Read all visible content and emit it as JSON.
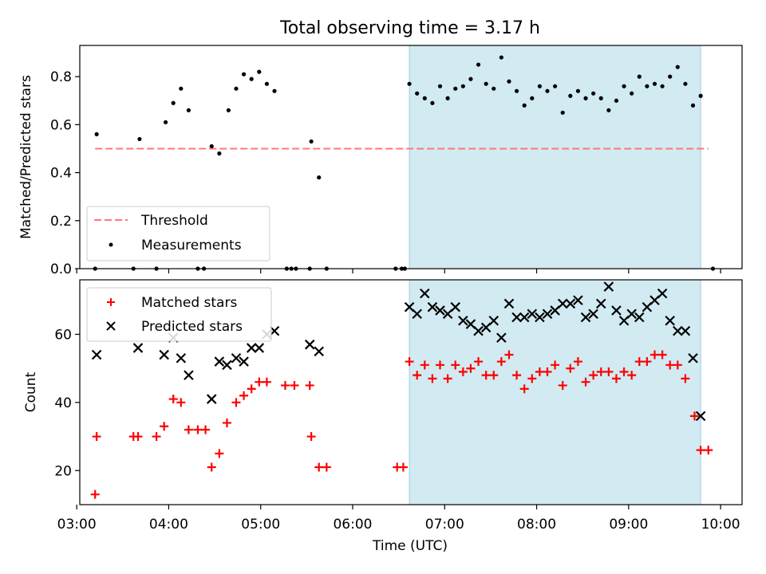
{
  "chart_data": [
    {
      "type": "scatter",
      "title": "Total observing time = 3.17 h",
      "xlabel": "",
      "ylabel": "Matched/Predicted stars",
      "x_unit": "time (UTC, HH:MM)",
      "xlim": [
        "03:02",
        "10:14"
      ],
      "ylim": [
        0,
        0.93
      ],
      "y_ticks": [
        "0.0",
        "0.2",
        "0.4",
        "0.6",
        "0.8"
      ],
      "highlight_span": [
        "06:37",
        "09:47"
      ],
      "highlight_color": "#add8e6",
      "legend_loc": "lower-left",
      "legend": [
        {
          "label": "Threshold",
          "style": "dashed-line",
          "color": "#ff7777"
        },
        {
          "label": "Measurements",
          "style": "dot",
          "color": "#000000"
        }
      ],
      "threshold": {
        "y": 0.5,
        "x_range": [
          "03:12",
          "09:52"
        ],
        "color": "#ff7777"
      },
      "series": [
        {
          "name": "Measurements",
          "color": "#000000",
          "points": [
            [
              "03:12",
              0.0
            ],
            [
              "03:13",
              0.56
            ],
            [
              "03:37",
              0.0
            ],
            [
              "03:41",
              0.54
            ],
            [
              "03:52",
              0.0
            ],
            [
              "03:58",
              0.61
            ],
            [
              "04:03",
              0.69
            ],
            [
              "04:08",
              0.75
            ],
            [
              "04:13",
              0.66
            ],
            [
              "04:19",
              0.0
            ],
            [
              "04:23",
              0.0
            ],
            [
              "04:28",
              0.51
            ],
            [
              "04:33",
              0.48
            ],
            [
              "04:39",
              0.66
            ],
            [
              "04:44",
              0.75
            ],
            [
              "04:49",
              0.81
            ],
            [
              "04:54",
              0.79
            ],
            [
              "04:59",
              0.82
            ],
            [
              "05:04",
              0.77
            ],
            [
              "05:09",
              0.74
            ],
            [
              "05:17",
              0.0
            ],
            [
              "05:20",
              0.0
            ],
            [
              "05:23",
              0.0
            ],
            [
              "05:32",
              0.0
            ],
            [
              "05:33",
              0.53
            ],
            [
              "05:38",
              0.38
            ],
            [
              "05:43",
              0.0
            ],
            [
              "06:28",
              0.0
            ],
            [
              "06:32",
              0.0
            ],
            [
              "06:34",
              0.0
            ],
            [
              "06:37",
              0.77
            ],
            [
              "06:42",
              0.73
            ],
            [
              "06:47",
              0.71
            ],
            [
              "06:52",
              0.69
            ],
            [
              "06:57",
              0.76
            ],
            [
              "07:02",
              0.71
            ],
            [
              "07:07",
              0.75
            ],
            [
              "07:12",
              0.76
            ],
            [
              "07:17",
              0.79
            ],
            [
              "07:22",
              0.85
            ],
            [
              "07:27",
              0.77
            ],
            [
              "07:32",
              0.75
            ],
            [
              "07:37",
              0.88
            ],
            [
              "07:42",
              0.78
            ],
            [
              "07:47",
              0.74
            ],
            [
              "07:52",
              0.68
            ],
            [
              "07:57",
              0.71
            ],
            [
              "08:02",
              0.76
            ],
            [
              "08:07",
              0.74
            ],
            [
              "08:12",
              0.76
            ],
            [
              "08:17",
              0.65
            ],
            [
              "08:22",
              0.72
            ],
            [
              "08:27",
              0.74
            ],
            [
              "08:32",
              0.71
            ],
            [
              "08:37",
              0.73
            ],
            [
              "08:42",
              0.71
            ],
            [
              "08:47",
              0.66
            ],
            [
              "08:52",
              0.7
            ],
            [
              "08:57",
              0.76
            ],
            [
              "09:02",
              0.73
            ],
            [
              "09:07",
              0.8
            ],
            [
              "09:12",
              0.76
            ],
            [
              "09:17",
              0.77
            ],
            [
              "09:22",
              0.76
            ],
            [
              "09:27",
              0.8
            ],
            [
              "09:32",
              0.84
            ],
            [
              "09:37",
              0.77
            ],
            [
              "09:42",
              0.68
            ],
            [
              "09:47",
              0.72
            ],
            [
              "09:55",
              0.0
            ]
          ]
        }
      ]
    },
    {
      "type": "scatter",
      "title": "",
      "xlabel": "Time (UTC)",
      "ylabel": "Count",
      "x_unit": "time (UTC, HH:MM)",
      "xlim": [
        "03:02",
        "10:14"
      ],
      "ylim": [
        10,
        76
      ],
      "y_ticks": [
        "20",
        "40",
        "60"
      ],
      "x_ticks": [
        "03:00",
        "04:00",
        "05:00",
        "06:00",
        "07:00",
        "08:00",
        "09:00",
        "10:00"
      ],
      "highlight_span": [
        "06:37",
        "09:47"
      ],
      "highlight_color": "#add8e6",
      "legend_loc": "upper-left",
      "legend": [
        {
          "label": "Matched stars",
          "style": "plus",
          "color": "#ff0000"
        },
        {
          "label": "Predicted stars",
          "style": "cross",
          "color": "#000000"
        }
      ],
      "series": [
        {
          "name": "Matched stars",
          "marker": "plus",
          "color": "#ff0000",
          "points": [
            [
              "03:12",
              13
            ],
            [
              "03:13",
              30
            ],
            [
              "03:37",
              30
            ],
            [
              "03:40",
              30
            ],
            [
              "03:52",
              30
            ],
            [
              "03:57",
              33
            ],
            [
              "04:03",
              41
            ],
            [
              "04:08",
              40
            ],
            [
              "04:13",
              32
            ],
            [
              "04:19",
              32
            ],
            [
              "04:24",
              32
            ],
            [
              "04:28",
              21
            ],
            [
              "04:33",
              25
            ],
            [
              "04:38",
              34
            ],
            [
              "04:44",
              40
            ],
            [
              "04:49",
              42
            ],
            [
              "04:54",
              44
            ],
            [
              "04:59",
              46
            ],
            [
              "05:04",
              46
            ],
            [
              "05:16",
              45
            ],
            [
              "05:22",
              45
            ],
            [
              "05:32",
              45
            ],
            [
              "05:33",
              30
            ],
            [
              "05:38",
              21
            ],
            [
              "05:43",
              21
            ],
            [
              "06:29",
              21
            ],
            [
              "06:33",
              21
            ],
            [
              "06:37",
              52
            ],
            [
              "06:42",
              48
            ],
            [
              "06:47",
              51
            ],
            [
              "06:52",
              47
            ],
            [
              "06:57",
              51
            ],
            [
              "07:02",
              47
            ],
            [
              "07:07",
              51
            ],
            [
              "07:12",
              49
            ],
            [
              "07:17",
              50
            ],
            [
              "07:22",
              52
            ],
            [
              "07:27",
              48
            ],
            [
              "07:32",
              48
            ],
            [
              "07:37",
              52
            ],
            [
              "07:42",
              54
            ],
            [
              "07:47",
              48
            ],
            [
              "07:52",
              44
            ],
            [
              "07:57",
              47
            ],
            [
              "08:02",
              49
            ],
            [
              "08:07",
              49
            ],
            [
              "08:12",
              51
            ],
            [
              "08:17",
              45
            ],
            [
              "08:22",
              50
            ],
            [
              "08:27",
              52
            ],
            [
              "08:32",
              46
            ],
            [
              "08:37",
              48
            ],
            [
              "08:42",
              49
            ],
            [
              "08:47",
              49
            ],
            [
              "08:52",
              47
            ],
            [
              "08:57",
              49
            ],
            [
              "09:02",
              48
            ],
            [
              "09:07",
              52
            ],
            [
              "09:12",
              52
            ],
            [
              "09:17",
              54
            ],
            [
              "09:22",
              54
            ],
            [
              "09:27",
              51
            ],
            [
              "09:32",
              51
            ],
            [
              "09:37",
              47
            ],
            [
              "09:43",
              36
            ],
            [
              "09:47",
              26
            ],
            [
              "09:52",
              26
            ]
          ]
        },
        {
          "name": "Predicted stars",
          "marker": "cross",
          "color": "#000000",
          "points": [
            [
              "03:13",
              54
            ],
            [
              "03:40",
              56
            ],
            [
              "03:57",
              54
            ],
            [
              "04:03",
              59
            ],
            [
              "04:08",
              53
            ],
            [
              "04:13",
              48
            ],
            [
              "04:28",
              41
            ],
            [
              "04:33",
              52
            ],
            [
              "04:38",
              51
            ],
            [
              "04:44",
              53
            ],
            [
              "04:49",
              52
            ],
            [
              "04:54",
              56
            ],
            [
              "04:59",
              56
            ],
            [
              "05:04",
              60
            ],
            [
              "05:09",
              61
            ],
            [
              "05:32",
              57
            ],
            [
              "05:38",
              55
            ],
            [
              "06:37",
              68
            ],
            [
              "06:42",
              66
            ],
            [
              "06:47",
              72
            ],
            [
              "06:52",
              68
            ],
            [
              "06:57",
              67
            ],
            [
              "07:02",
              66
            ],
            [
              "07:07",
              68
            ],
            [
              "07:12",
              64
            ],
            [
              "07:17",
              63
            ],
            [
              "07:22",
              61
            ],
            [
              "07:27",
              62
            ],
            [
              "07:32",
              64
            ],
            [
              "07:37",
              59
            ],
            [
              "07:42",
              69
            ],
            [
              "07:47",
              65
            ],
            [
              "07:52",
              65
            ],
            [
              "07:57",
              66
            ],
            [
              "08:02",
              65
            ],
            [
              "08:07",
              66
            ],
            [
              "08:12",
              67
            ],
            [
              "08:17",
              69
            ],
            [
              "08:22",
              69
            ],
            [
              "08:27",
              70
            ],
            [
              "08:32",
              65
            ],
            [
              "08:37",
              66
            ],
            [
              "08:42",
              69
            ],
            [
              "08:47",
              74
            ],
            [
              "08:52",
              67
            ],
            [
              "08:57",
              64
            ],
            [
              "09:02",
              66
            ],
            [
              "09:07",
              65
            ],
            [
              "09:12",
              68
            ],
            [
              "09:17",
              70
            ],
            [
              "09:22",
              72
            ],
            [
              "09:27",
              64
            ],
            [
              "09:32",
              61
            ],
            [
              "09:37",
              61
            ],
            [
              "09:42",
              53
            ],
            [
              "09:47",
              36
            ]
          ]
        }
      ]
    }
  ]
}
